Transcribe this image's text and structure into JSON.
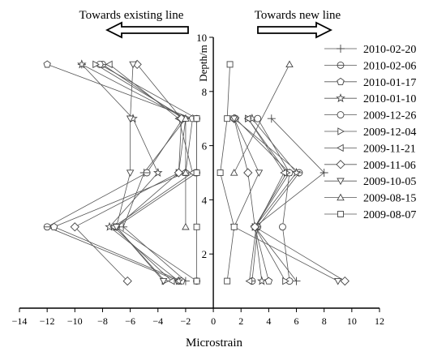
{
  "chart_data": {
    "type": "line",
    "orientation": "vertical-profile",
    "title": "",
    "xlabel": "Microstrain",
    "ylabel": "Depth/m",
    "xlim": [
      -14,
      12
    ],
    "ylim": [
      0,
      10
    ],
    "x_ticks": [
      -14,
      -12,
      -10,
      -8,
      -6,
      -4,
      -2,
      0,
      2,
      4,
      6,
      8,
      10,
      12
    ],
    "y_ticks": [
      2,
      4,
      6,
      8,
      10
    ],
    "depths": [
      1,
      3,
      5,
      7,
      9
    ],
    "annotations": {
      "left_arrow": "Towards existing line",
      "right_arrow": "Towards new line"
    },
    "legend_position": "right",
    "series": [
      {
        "name": "2010-02-20",
        "marker": "plus",
        "left": [
          -2.0,
          -6.5,
          -5.0,
          -2.0,
          -9.5
        ],
        "right": [
          6.0,
          3.0,
          8.0,
          4.2
        ]
      },
      {
        "name": "2010-02-06",
        "marker": "circle-dot",
        "left": [
          -2.5,
          -12.0,
          -4.8,
          -2.2,
          -8.0
        ],
        "right": [
          2.8,
          3.2,
          6.2,
          1.5
        ]
      },
      {
        "name": "2010-01-17",
        "marker": "pentagon",
        "left": [
          -2.3,
          -11.5,
          -2.0,
          -1.5,
          -12.0
        ],
        "right": [
          4.0,
          3.0,
          5.5,
          1.6
        ]
      },
      {
        "name": "2010-01-10",
        "marker": "star",
        "left": [
          -2.5,
          -7.5,
          -4.0,
          -5.8,
          -9.5
        ],
        "right": [
          3.5,
          3.0,
          6.0,
          2.8
        ]
      },
      {
        "name": "2009-12-26",
        "marker": "circle",
        "left": [
          -1.2,
          -7.0,
          -1.2,
          -1.2,
          -8.2
        ],
        "right": [
          5.5,
          5.0,
          5.5,
          3.2
        ]
      },
      {
        "name": "2009-12-04",
        "marker": "triangle-right",
        "left": [
          -3.5,
          -7.0,
          -2.5,
          -2.0,
          -8.5
        ],
        "right": [
          5.2,
          3.0,
          5.3,
          2.5
        ]
      },
      {
        "name": "2009-11-21",
        "marker": "triangle-left",
        "left": [
          -3.0,
          -7.2,
          -1.5,
          -2.5,
          -7.5
        ],
        "right": [
          2.6,
          3.1,
          5.1,
          2.5
        ]
      },
      {
        "name": "2009-11-06",
        "marker": "diamond",
        "left": [
          -6.2,
          -10.0,
          -2.5,
          -2.3,
          -5.5
        ],
        "right": [
          9.5,
          3.0,
          2.5,
          1.5
        ]
      },
      {
        "name": "2009-10-05",
        "marker": "triangle-down",
        "left": [
          -3.6,
          -7.0,
          -6.0,
          -6.0,
          -5.8
        ],
        "right": [
          9.0,
          1.5,
          3.3,
          1.5
        ]
      },
      {
        "name": "2009-08-15",
        "marker": "triangle-up",
        "left": [
          -2.0,
          -2.0,
          -2.0
        ],
        "left_depths": [
          7,
          5,
          3
        ],
        "right": [
          1.5,
          5.5
        ],
        "right_depths": [
          5,
          9
        ]
      },
      {
        "name": "2009-08-07",
        "marker": "square",
        "left": [
          -1.2,
          -1.2,
          -1.2,
          -1.2
        ],
        "left_depths": [
          7,
          5,
          3,
          1
        ],
        "right": [
          1.2,
          1.0,
          0.5,
          1.5,
          1.0
        ],
        "right_depths": [
          9,
          7,
          5,
          3,
          1
        ]
      }
    ]
  },
  "colors": {
    "axis": "#000000",
    "line": "#555555",
    "marker": "#444444"
  }
}
